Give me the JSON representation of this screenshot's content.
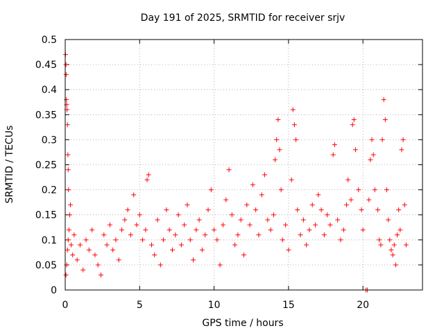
{
  "chart_data": {
    "type": "scatter",
    "title": "Day 191 of 2025, SRMTID for receiver srjv",
    "xlabel": "GPS time / hours",
    "ylabel": "SRMTID / TECUs",
    "xlim": [
      0,
      24
    ],
    "ylim": [
      0,
      0.5
    ],
    "x_ticks": [
      0,
      5,
      10,
      15,
      20
    ],
    "y_ticks": [
      0,
      0.05,
      0.1,
      0.15,
      0.2,
      0.25,
      0.3,
      0.35,
      0.4,
      0.45,
      0.5
    ],
    "x_tick_labels": [
      "0",
      "5",
      "10",
      "15",
      "20"
    ],
    "y_tick_labels": [
      "0",
      "0.05",
      "0.1",
      "0.15",
      "0.2",
      "0.25",
      "0.3",
      "0.35",
      "0.4",
      "0.45",
      "0.5"
    ],
    "grid": true,
    "marker": "plus",
    "series": [
      {
        "name": "SRMTID",
        "color": "#ff0000",
        "points": [
          [
            0.02,
            0.47
          ],
          [
            0.05,
            0.45
          ],
          [
            0.06,
            0.43
          ],
          [
            0.08,
            0.38
          ],
          [
            0.1,
            0.37
          ],
          [
            0.12,
            0.36
          ],
          [
            0.15,
            0.33
          ],
          [
            0.18,
            0.27
          ],
          [
            0.2,
            0.24
          ],
          [
            0.22,
            0.2
          ],
          [
            0.05,
            0.03
          ],
          [
            0.1,
            0.05
          ],
          [
            0.15,
            0.08
          ],
          [
            0.2,
            0.1
          ],
          [
            0.25,
            0.12
          ],
          [
            0.3,
            0.15
          ],
          [
            0.35,
            0.17
          ],
          [
            0.4,
            0.09
          ],
          [
            0.5,
            0.07
          ],
          [
            0.6,
            0.11
          ],
          [
            0.8,
            0.06
          ],
          [
            1.0,
            0.09
          ],
          [
            1.2,
            0.04
          ],
          [
            1.4,
            0.1
          ],
          [
            1.6,
            0.08
          ],
          [
            1.8,
            0.12
          ],
          [
            2.0,
            0.07
          ],
          [
            2.2,
            0.05
          ],
          [
            2.4,
            0.03
          ],
          [
            2.6,
            0.11
          ],
          [
            2.8,
            0.09
          ],
          [
            3.0,
            0.13
          ],
          [
            3.2,
            0.08
          ],
          [
            3.4,
            0.1
          ],
          [
            3.6,
            0.06
          ],
          [
            3.8,
            0.12
          ],
          [
            4.0,
            0.14
          ],
          [
            4.2,
            0.16
          ],
          [
            4.4,
            0.11
          ],
          [
            4.6,
            0.19
          ],
          [
            4.8,
            0.13
          ],
          [
            5.0,
            0.15
          ],
          [
            5.2,
            0.1
          ],
          [
            5.4,
            0.12
          ],
          [
            5.5,
            0.22
          ],
          [
            5.6,
            0.23
          ],
          [
            5.8,
            0.09
          ],
          [
            6.0,
            0.07
          ],
          [
            6.2,
            0.14
          ],
          [
            6.4,
            0.05
          ],
          [
            6.6,
            0.1
          ],
          [
            6.8,
            0.16
          ],
          [
            7.0,
            0.12
          ],
          [
            7.2,
            0.08
          ],
          [
            7.4,
            0.11
          ],
          [
            7.6,
            0.15
          ],
          [
            7.8,
            0.09
          ],
          [
            8.0,
            0.13
          ],
          [
            8.2,
            0.17
          ],
          [
            8.4,
            0.1
          ],
          [
            8.6,
            0.06
          ],
          [
            8.8,
            0.12
          ],
          [
            9.0,
            0.14
          ],
          [
            9.2,
            0.08
          ],
          [
            9.4,
            0.11
          ],
          [
            9.6,
            0.16
          ],
          [
            9.8,
            0.2
          ],
          [
            10.0,
            0.12
          ],
          [
            10.2,
            0.1
          ],
          [
            10.4,
            0.05
          ],
          [
            10.6,
            0.13
          ],
          [
            10.8,
            0.18
          ],
          [
            11.0,
            0.24
          ],
          [
            11.2,
            0.15
          ],
          [
            11.4,
            0.09
          ],
          [
            11.6,
            0.11
          ],
          [
            11.8,
            0.14
          ],
          [
            12.0,
            0.07
          ],
          [
            12.2,
            0.17
          ],
          [
            12.4,
            0.13
          ],
          [
            12.6,
            0.21
          ],
          [
            12.8,
            0.16
          ],
          [
            13.0,
            0.11
          ],
          [
            13.2,
            0.19
          ],
          [
            13.4,
            0.23
          ],
          [
            13.6,
            0.14
          ],
          [
            13.8,
            0.12
          ],
          [
            14.0,
            0.15
          ],
          [
            14.1,
            0.26
          ],
          [
            14.2,
            0.3
          ],
          [
            14.3,
            0.34
          ],
          [
            14.4,
            0.28
          ],
          [
            14.5,
            0.2
          ],
          [
            14.6,
            0.1
          ],
          [
            14.8,
            0.13
          ],
          [
            15.0,
            0.08
          ],
          [
            15.2,
            0.22
          ],
          [
            15.3,
            0.36
          ],
          [
            15.4,
            0.33
          ],
          [
            15.5,
            0.3
          ],
          [
            15.6,
            0.16
          ],
          [
            15.8,
            0.11
          ],
          [
            16.0,
            0.14
          ],
          [
            16.2,
            0.09
          ],
          [
            16.4,
            0.12
          ],
          [
            16.6,
            0.17
          ],
          [
            16.8,
            0.13
          ],
          [
            17.0,
            0.19
          ],
          [
            17.2,
            0.16
          ],
          [
            17.4,
            0.11
          ],
          [
            17.6,
            0.15
          ],
          [
            17.8,
            0.13
          ],
          [
            18.0,
            0.27
          ],
          [
            18.1,
            0.29
          ],
          [
            18.3,
            0.14
          ],
          [
            18.5,
            0.1
          ],
          [
            18.7,
            0.12
          ],
          [
            18.9,
            0.17
          ],
          [
            19.0,
            0.22
          ],
          [
            19.2,
            0.18
          ],
          [
            19.3,
            0.33
          ],
          [
            19.4,
            0.34
          ],
          [
            19.5,
            0.28
          ],
          [
            19.7,
            0.2
          ],
          [
            19.9,
            0.16
          ],
          [
            20.0,
            0.12
          ],
          [
            20.2,
            0.0
          ],
          [
            20.3,
            0.0
          ],
          [
            20.4,
            0.18
          ],
          [
            20.5,
            0.26
          ],
          [
            20.6,
            0.3
          ],
          [
            20.7,
            0.27
          ],
          [
            20.8,
            0.2
          ],
          [
            21.0,
            0.16
          ],
          [
            21.1,
            0.1
          ],
          [
            21.2,
            0.09
          ],
          [
            21.3,
            0.3
          ],
          [
            21.4,
            0.38
          ],
          [
            21.5,
            0.34
          ],
          [
            21.6,
            0.2
          ],
          [
            21.7,
            0.14
          ],
          [
            21.8,
            0.1
          ],
          [
            21.9,
            0.08
          ],
          [
            22.0,
            0.07
          ],
          [
            22.1,
            0.09
          ],
          [
            22.2,
            0.05
          ],
          [
            22.3,
            0.11
          ],
          [
            22.4,
            0.16
          ],
          [
            22.5,
            0.12
          ],
          [
            22.6,
            0.28
          ],
          [
            22.7,
            0.3
          ],
          [
            22.8,
            0.17
          ],
          [
            22.9,
            0.09
          ]
        ]
      }
    ]
  }
}
